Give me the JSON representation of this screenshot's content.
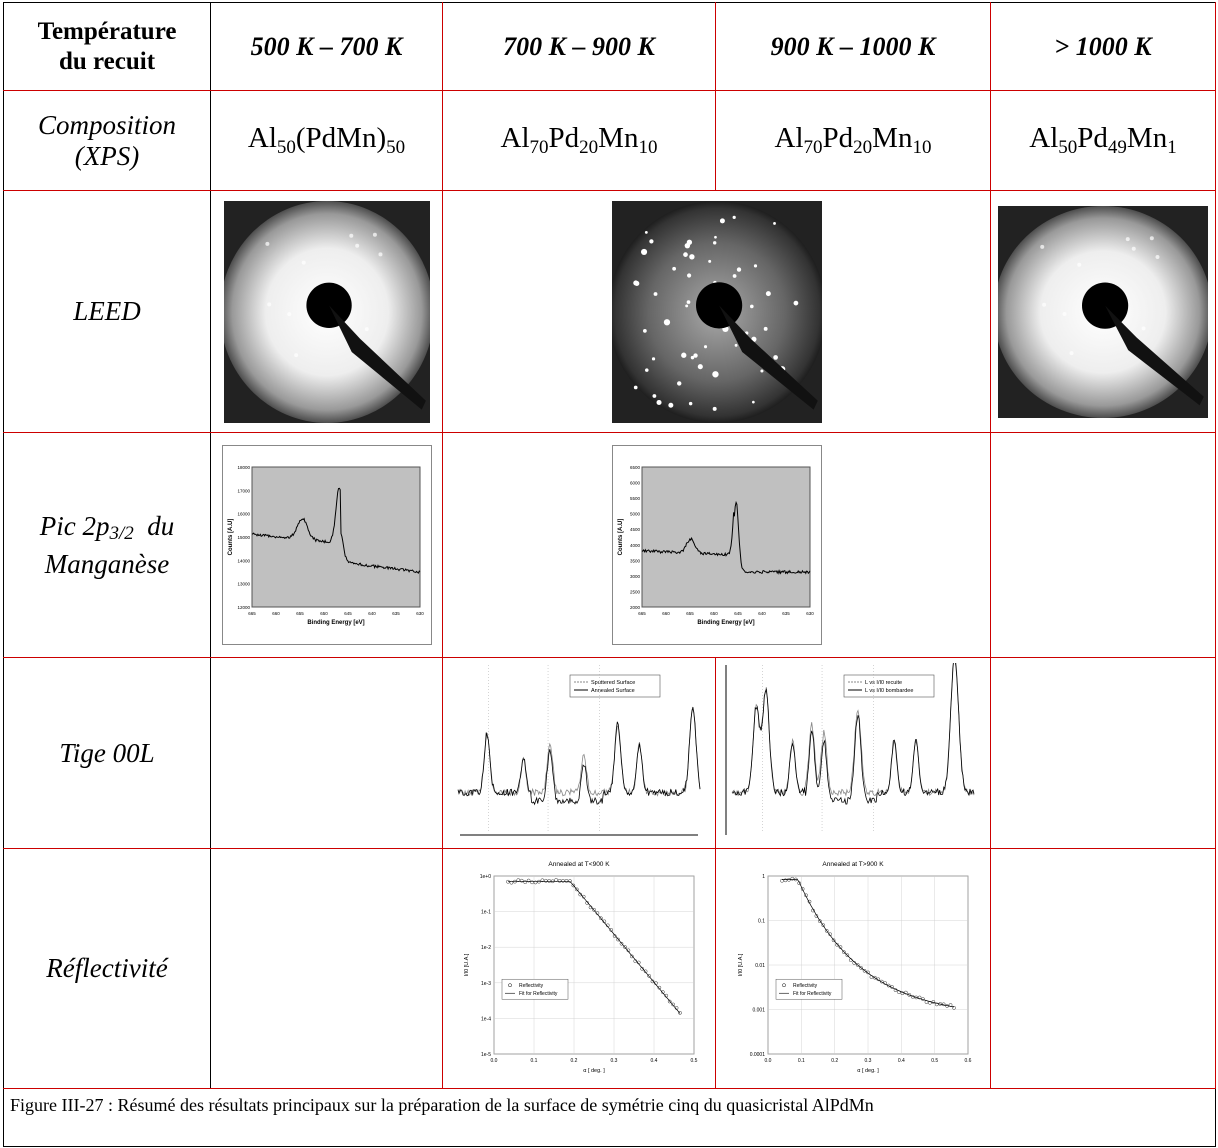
{
  "header": {
    "row_label": [
      "Température",
      "du recuit"
    ],
    "columns": [
      "500 K – 700 K",
      "700 K – 900 K",
      "900 K – 1000 K",
      "> 1000 K"
    ]
  },
  "composition": {
    "label": [
      "Composition",
      "(XPS)"
    ],
    "values": [
      [
        "Al",
        "50",
        "(PdMn)",
        "50"
      ],
      [
        "Al",
        "70",
        "Pd",
        "20",
        "Mn",
        "10"
      ],
      [
        "Al",
        "70",
        "Pd",
        "20",
        "Mn",
        "10"
      ],
      [
        "Al",
        "50",
        "Pd",
        "49",
        "Mn",
        "1"
      ]
    ]
  },
  "leed": {
    "label": "LEED"
  },
  "mn_peak": {
    "label": [
      "Pic 2p",
      "3/2",
      "  du",
      "Manganèse"
    ],
    "plots": [
      {
        "y_label": "Counts [A.U]",
        "x_label": "Binding Energy [eV]",
        "xticks": [
          "665",
          "660",
          "655",
          "650",
          "645",
          "640",
          "635",
          "630"
        ],
        "yticks": [
          "18000",
          "17000",
          "16000",
          "15000",
          "14000",
          "13000",
          "12000"
        ]
      },
      {
        "y_label": "Counts [A.U]",
        "x_label": "Binding Energy [eV]",
        "xticks": [
          "665",
          "660",
          "655",
          "650",
          "645",
          "640",
          "635",
          "630"
        ],
        "yticks": [
          "6500",
          "6000",
          "5500",
          "5000",
          "4500",
          "4000",
          "3500",
          "3000",
          "2500",
          "2000"
        ]
      }
    ]
  },
  "rod": {
    "label": "Tige 00L",
    "plots": [
      {
        "legend": [
          "Sputtered Surface",
          "Annealed Surface"
        ]
      },
      {
        "legend": [
          "L vs I/I0 recuite",
          "L vs I/I0 bombardee"
        ]
      }
    ]
  },
  "reflectivity": {
    "label": "Réflectivité",
    "plots": [
      {
        "title": "Annealed at T<900 K",
        "y_label": "I/I0 [U.A.]",
        "x_label": "α [ deg. ]",
        "legend": [
          "Reflectivity",
          "Fit for Reflectivity"
        ],
        "xticks": [
          "0.0",
          "0.1",
          "0.2",
          "0.3",
          "0.4",
          "0.5"
        ],
        "yticks": [
          "1e+0",
          "1e-1",
          "1e-2",
          "1e-3",
          "1e-4",
          "1e-5"
        ]
      },
      {
        "title": "Annealed at T>900 K",
        "y_label": "I/I0 [U.A.]",
        "x_label": "α [ deg. ]",
        "legend": [
          "Reflectivity",
          "Fit for Reflectivity"
        ],
        "xticks": [
          "0.0",
          "0.1",
          "0.2",
          "0.3",
          "0.4",
          "0.5",
          "0.6"
        ],
        "yticks": [
          "1",
          "0.1",
          "0.01",
          "0.001",
          "0.0001"
        ]
      }
    ]
  },
  "caption": "Figure III-27 : Résumé des résultats principaux sur la préparation de la surface de symétrie cinq du quasicristal AlPdMn"
}
